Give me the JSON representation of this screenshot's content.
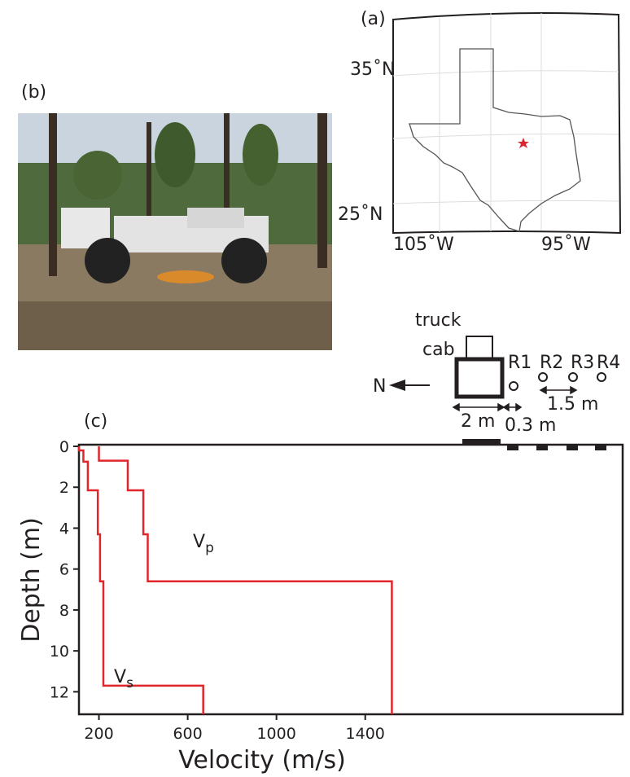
{
  "map": {
    "panel_label": "(a)",
    "lat_labels": [
      "35˚N",
      "25˚N"
    ],
    "lon_labels": [
      "105˚W",
      "95˚W"
    ]
  },
  "photo": {
    "panel_label": "(b)"
  },
  "diagram": {
    "truck_label": [
      "truck",
      "cab"
    ],
    "receivers": [
      "R1",
      "R2",
      "R3",
      "R4"
    ],
    "north": "N",
    "dimensions": [
      "2 m",
      "0.3 m",
      "1.5 m"
    ]
  },
  "chart_data": {
    "type": "line",
    "panel_label": "(c)",
    "xlabel": "Velocity (m/s)",
    "ylabel": "Depth (m)",
    "xlim": [
      110,
      2560
    ],
    "ylim": [
      0,
      13.1
    ],
    "y_inverted": true,
    "xticks": [
      200,
      600,
      1000,
      1400
    ],
    "yticks": [
      0,
      2,
      4,
      6,
      8,
      10,
      12
    ],
    "series": [
      {
        "name": "Vp",
        "color": "#e0262b",
        "x": [
          200,
          200,
          330,
          330,
          400,
          400,
          420,
          420,
          1520,
          1520
        ],
        "values": [
          0,
          0.7,
          0.7,
          2.15,
          2.15,
          4.3,
          4.3,
          6.6,
          6.6,
          13.1
        ]
      },
      {
        "name": "Vs",
        "color": "#e0262b",
        "x": [
          110,
          110,
          130,
          130,
          150,
          150,
          195,
          195,
          205,
          205,
          220,
          220,
          670,
          670
        ],
        "values": [
          0,
          0.2,
          0.2,
          0.75,
          0.75,
          2.15,
          2.15,
          4.3,
          4.3,
          6.6,
          6.6,
          11.7,
          11.7,
          13.1
        ]
      }
    ]
  }
}
